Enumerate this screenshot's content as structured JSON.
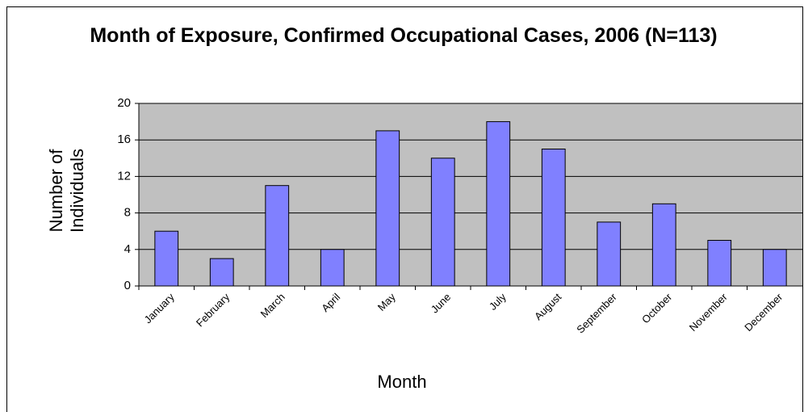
{
  "chart_data": {
    "type": "bar",
    "title": "Month of Exposure, Confirmed Occupational Cases, 2006 (N=113)",
    "x_label": "Month",
    "y_label": "Number of Individuals",
    "categories": [
      "January",
      "February",
      "March",
      "April",
      "May",
      "June",
      "July",
      "August",
      "September",
      "October",
      "November",
      "December"
    ],
    "values": [
      6,
      3,
      11,
      4,
      17,
      14,
      18,
      15,
      7,
      9,
      5,
      4
    ],
    "color": "#8080ff",
    "ylim": [
      0,
      20
    ],
    "yticks": [
      0,
      4,
      8,
      12,
      16,
      20
    ],
    "grid": true
  }
}
